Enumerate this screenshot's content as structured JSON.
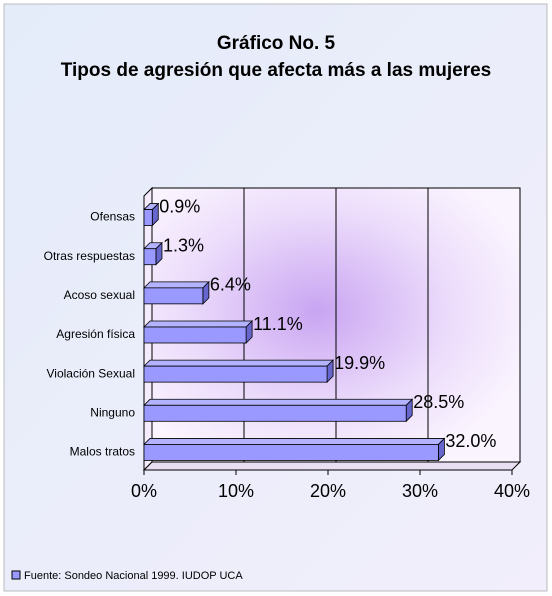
{
  "chart_data": {
    "type": "bar3d_horizontal",
    "title": "Gráfico No. 5",
    "subtitle": "Tipos de agresión que afecta más a las mujeres",
    "categories": [
      "Ofensas",
      "Otras respuestas",
      "Acoso sexual",
      "Agresión física",
      "Violación Sexual",
      "Ninguno",
      "Malos tratos"
    ],
    "series": [
      {
        "name": "Fuente: Sondeo Nacional 1999. IUDOP UCA",
        "color": "#9999ff",
        "values": [
          0.9,
          1.3,
          6.4,
          11.1,
          19.9,
          28.5,
          32.0
        ],
        "value_labels": [
          "0.9%",
          "1.3%",
          "6.4%",
          "11.1%",
          "19.9%",
          "28.5%",
          "32.0%"
        ]
      }
    ],
    "xlim": [
      0,
      40
    ],
    "xticks": [
      {
        "value": 0,
        "label": "0%"
      },
      {
        "value": 10,
        "label": "10%"
      },
      {
        "value": 20,
        "label": "20%"
      },
      {
        "value": 30,
        "label": "30%"
      },
      {
        "value": 40,
        "label": "40%"
      }
    ],
    "grid": true,
    "legend": "bottom-left"
  }
}
